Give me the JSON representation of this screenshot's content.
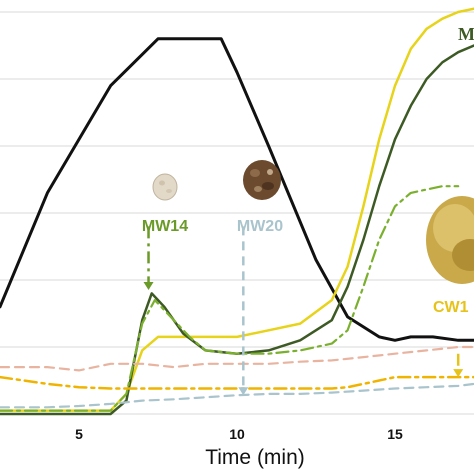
{
  "chart_data": {
    "type": "line",
    "xlabel": "Time (min)",
    "xlim": [
      2.5,
      17.5
    ],
    "ylim": [
      0,
      6
    ],
    "xticks": [
      5,
      10,
      15
    ],
    "grid": "horizontal",
    "series": [
      {
        "color": "#111111",
        "dash": "solid",
        "width": 3,
        "x": [
          2.5,
          4,
          6,
          7.5,
          8,
          9.5,
          10,
          11,
          12.5,
          13.5,
          14.5,
          15,
          15.5,
          16.2,
          17,
          17.5
        ],
        "y": [
          1.6,
          3.3,
          4.9,
          5.6,
          5.6,
          5.6,
          5.1,
          4.0,
          2.3,
          1.45,
          1.15,
          1.1,
          1.15,
          1.15,
          1.1,
          1.1
        ]
      },
      {
        "color": "#e6d31a",
        "dash": "solid",
        "width": 2.5,
        "x": [
          2.5,
          6,
          6.5,
          7,
          7.5,
          8,
          9,
          10,
          11,
          12,
          13,
          13.5,
          14,
          14.5,
          15,
          15.5,
          16,
          16.5,
          17,
          17.5
        ],
        "y": [
          0.05,
          0.05,
          0.3,
          0.95,
          1.15,
          1.15,
          1.15,
          1.15,
          1.25,
          1.35,
          1.7,
          2.2,
          3.1,
          4.1,
          4.9,
          5.45,
          5.75,
          5.9,
          6.0,
          6.05
        ]
      },
      {
        "color": "#3d5a24",
        "dash": "solid",
        "width": 2.5,
        "x": [
          2.5,
          6,
          6.5,
          7,
          7.3,
          7.7,
          8.3,
          9,
          10,
          11,
          12,
          13,
          13.5,
          14,
          14.5,
          15,
          15.5,
          16,
          16.5,
          17,
          17.5
        ],
        "y": [
          0.0,
          0.0,
          0.2,
          1.4,
          1.8,
          1.6,
          1.2,
          0.95,
          0.9,
          0.95,
          1.1,
          1.4,
          1.9,
          2.6,
          3.4,
          4.1,
          4.6,
          5.0,
          5.25,
          5.4,
          5.5
        ]
      },
      {
        "color": "#7ab02e",
        "dash": "dashdot",
        "width": 2.2,
        "x": [
          2.5,
          6,
          6.5,
          7,
          7.4,
          7.8,
          8.5,
          9,
          10,
          11,
          12,
          12.5,
          13,
          13.5,
          14,
          14.5,
          15,
          15.5,
          16,
          16.5,
          17
        ],
        "y": [
          0.05,
          0.05,
          0.3,
          1.35,
          1.7,
          1.5,
          1.15,
          0.95,
          0.9,
          0.9,
          0.95,
          1.0,
          1.05,
          1.25,
          1.9,
          2.6,
          3.1,
          3.3,
          3.35,
          3.4,
          3.4
        ]
      },
      {
        "color": "#e8b4a0",
        "dash": "dashed",
        "width": 2.2,
        "x": [
          2.5,
          4,
          5,
          6,
          7,
          8,
          9,
          10,
          11,
          12,
          13,
          14,
          15,
          16,
          17,
          17.5
        ],
        "y": [
          0.7,
          0.7,
          0.65,
          0.75,
          0.75,
          0.7,
          0.75,
          0.75,
          0.75,
          0.78,
          0.8,
          0.85,
          0.9,
          0.95,
          1.0,
          1.0
        ]
      },
      {
        "color": "#f0b400",
        "dash": "dashdot",
        "width": 2.5,
        "x": [
          2.5,
          4,
          5,
          6,
          7,
          8,
          9,
          10,
          11,
          12,
          13,
          13.5,
          14,
          14.5,
          15,
          15.5,
          16,
          16.5,
          17.5
        ],
        "y": [
          0.55,
          0.45,
          0.4,
          0.38,
          0.38,
          0.38,
          0.38,
          0.38,
          0.38,
          0.38,
          0.38,
          0.4,
          0.45,
          0.5,
          0.55,
          0.55,
          0.55,
          0.55,
          0.55
        ]
      },
      {
        "color": "#a9c4cc",
        "dash": "dashed",
        "width": 2.2,
        "x": [
          2.5,
          4,
          5,
          6,
          7,
          8,
          9,
          10,
          11,
          12,
          13,
          14,
          15,
          16,
          17,
          17.5
        ],
        "y": [
          0.1,
          0.1,
          0.12,
          0.15,
          0.2,
          0.22,
          0.25,
          0.28,
          0.3,
          0.3,
          0.32,
          0.35,
          0.38,
          0.4,
          0.42,
          0.45
        ]
      }
    ],
    "annotations": [
      {
        "text": "MW14",
        "color": "#6a9a28",
        "arrow_x": 7.2,
        "arrow_from_y": 2.8,
        "arrow_to_y": 1.85,
        "dash": "dashdot"
      },
      {
        "text": "MW20",
        "color": "#a9c4cc",
        "arrow_x": 10.2,
        "arrow_from_y": 2.8,
        "arrow_to_y": 0.28,
        "dash": "dashed"
      },
      {
        "text": "CW1",
        "color": "#e6c31a",
        "arrow_x": 17.0,
        "arrow_from_y": 0.9,
        "arrow_to_y": 0.55,
        "dash": "dashdot"
      },
      {
        "text": "M",
        "color": "#3d5a24"
      }
    ]
  }
}
